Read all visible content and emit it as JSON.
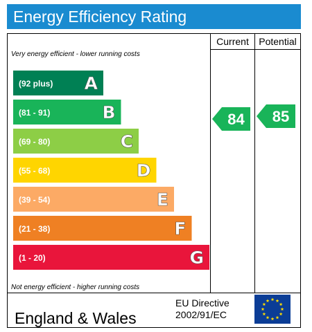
{
  "title": "Energy Efficiency Rating",
  "columns": {
    "current": "Current",
    "potential": "Potential"
  },
  "notes": {
    "top": "Very energy efficient - lower running costs",
    "bottom": "Not energy efficient - higher running costs"
  },
  "footer": {
    "region": "England & Wales",
    "directive_line1": "EU Directive",
    "directive_line2": "2002/91/EC"
  },
  "colors": {
    "title_bar": "#1a8bd0",
    "text_on_band": "#ffffff",
    "eu_flag_blue": "#0b3d96",
    "eu_flag_stars": "#ffdd00"
  },
  "chart_data": {
    "type": "bar",
    "bands": [
      {
        "range": "(92 plus)",
        "letter": "A",
        "color": "#008054"
      },
      {
        "range": "(81 - 91)",
        "letter": "B",
        "color": "#19b459"
      },
      {
        "range": "(69 - 80)",
        "letter": "C",
        "color": "#8dce46"
      },
      {
        "range": "(55 - 68)",
        "letter": "D",
        "color": "#ffd500"
      },
      {
        "range": "(39 - 54)",
        "letter": "E",
        "color": "#fcaa65"
      },
      {
        "range": "(21 - 38)",
        "letter": "F",
        "color": "#ef8023"
      },
      {
        "range": "(1 - 20)",
        "letter": "G",
        "color": "#e9153b"
      }
    ],
    "current": {
      "value": 84,
      "band": "B"
    },
    "potential": {
      "value": 85,
      "band": "B"
    }
  }
}
